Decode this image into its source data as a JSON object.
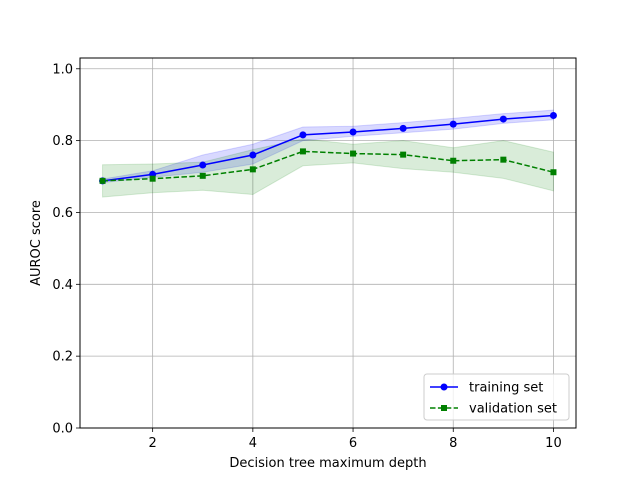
{
  "chart_data": {
    "type": "line",
    "title": "",
    "xlabel": "Decision tree maximum depth",
    "ylabel": "AUROC score",
    "xlim": [
      0.55,
      10.45
    ],
    "ylim": [
      0.0,
      1.03
    ],
    "x_ticks": [
      2,
      4,
      6,
      8,
      10
    ],
    "y_ticks": [
      0.0,
      0.2,
      0.4,
      0.6,
      0.8,
      1.0
    ],
    "x_tick_labels": [
      "2",
      "4",
      "6",
      "8",
      "10"
    ],
    "y_tick_labels": [
      "0.0",
      "0.2",
      "0.4",
      "0.6",
      "0.8",
      "1.0"
    ],
    "grid": true,
    "legend_position": "lower-right",
    "x": [
      1,
      2,
      3,
      4,
      5,
      6,
      7,
      8,
      9,
      10
    ],
    "series": [
      {
        "name": "training set",
        "color": "#0000ff",
        "linestyle": "solid",
        "marker": "circle",
        "values": [
          0.688,
          0.706,
          0.732,
          0.76,
          0.816,
          0.824,
          0.834,
          0.846,
          0.86,
          0.87
        ],
        "band_lower": [
          0.683,
          0.698,
          0.712,
          0.735,
          0.8,
          0.812,
          0.822,
          0.832,
          0.848,
          0.858
        ],
        "band_upper": [
          0.693,
          0.716,
          0.76,
          0.79,
          0.838,
          0.84,
          0.85,
          0.862,
          0.875,
          0.885
        ],
        "band_color": "#0000ff"
      },
      {
        "name": "validation set",
        "color": "#008000",
        "linestyle": "dashed",
        "marker": "square",
        "values": [
          0.688,
          0.694,
          0.702,
          0.72,
          0.77,
          0.764,
          0.761,
          0.744,
          0.747,
          0.712
        ],
        "band_lower": [
          0.643,
          0.655,
          0.662,
          0.65,
          0.73,
          0.738,
          0.722,
          0.712,
          0.695,
          0.66
        ],
        "band_upper": [
          0.733,
          0.735,
          0.74,
          0.775,
          0.805,
          0.79,
          0.8,
          0.78,
          0.8,
          0.768
        ],
        "band_color": "#008000"
      }
    ]
  }
}
